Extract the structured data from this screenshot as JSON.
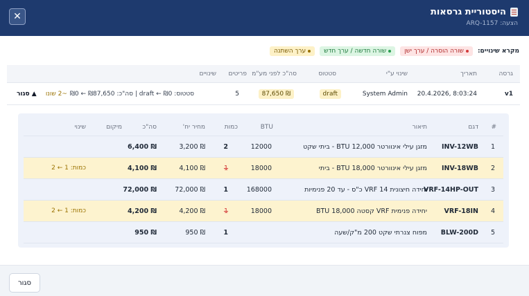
{
  "header": {
    "title": "היסטוריית גרסאות",
    "subtitle": "הצעה: ARQ-1157",
    "close_symbol": "✕"
  },
  "legend": {
    "title": "מקרא שינויים:",
    "removed": "שורה הוסרה / ערך ישן",
    "added": "שורה חדשה / ערך חדש",
    "changed": "ערך השתנה"
  },
  "versions_table": {
    "columns": [
      "גרסה",
      "תאריך",
      "שינוי ע\"י",
      "סטטוס",
      "סה\"כ לפני מע\"מ",
      "פריטים",
      "שינויים"
    ],
    "row": {
      "version": "v1",
      "date": "20.4.2026, 8:03:24",
      "by": "System Admin",
      "status": "draft",
      "total": "₪ 87,650",
      "items": "5",
      "changes_text": "סטטוס: draft ← ₪0 | סה\"כ: ₪87,650 ← ₪0",
      "changes_count": "~2 שונו",
      "toggle": "▲ סגור"
    }
  },
  "items_table": {
    "columns": [
      "#",
      "דגם",
      "תיאור",
      "BTU",
      "כמות",
      "מחיר יח'",
      "סה\"כ",
      "מיקום",
      "שינוי"
    ],
    "rows": [
      {
        "n": "1",
        "model": "INV-12WB",
        "desc": "מזגן עילי אינוורטר BTU 12,000 - ביתי שקט",
        "btu": "12000",
        "old_qty": "",
        "qty": "2",
        "price": "₪ 3,200",
        "total": "₪ 6,400",
        "change": "",
        "changed": false
      },
      {
        "n": "2",
        "model": "INV-18WB",
        "desc": "מזגן עילי אינוורטר BTU 18,000 - ביתי",
        "btu": "18000",
        "old_qty": "1",
        "qty": "",
        "price": "₪ 4,100",
        "total": "₪ 4,100",
        "change": "כמות: 1 ← 2",
        "changed": true
      },
      {
        "n": "3",
        "model": "VRF-14HP-OUT",
        "desc": "יחידה חיצונית VRF 14 כ\"ס - עד 20 פנימיות",
        "btu": "168000",
        "old_qty": "",
        "qty": "1",
        "price": "₪ 72,000",
        "total": "₪ 72,000",
        "change": "",
        "changed": false
      },
      {
        "n": "4",
        "model": "VRF-18IN",
        "desc": "יחידה פנימית VRF קסטה BTU 18,000",
        "btu": "18000",
        "old_qty": "1",
        "qty": "",
        "price": "₪ 4,200",
        "total": "₪ 4,200",
        "change": "כמות: 1 ← 2",
        "changed": true
      },
      {
        "n": "5",
        "model": "BLW-200D",
        "desc": "מפוח צנרתי שקט 200 מ\"ק/שעה",
        "btu": "",
        "old_qty": "",
        "qty": "1",
        "price": "₪ 950",
        "total": "₪ 950",
        "change": "",
        "changed": false
      }
    ]
  },
  "footer": {
    "close_label": "סגור"
  },
  "colors": {
    "header_bg": "#1e3a6e",
    "changed_row": "#fdf3cf",
    "removed": "#d43a3a",
    "added": "#2a9e4f",
    "changed": "#9a7200"
  }
}
